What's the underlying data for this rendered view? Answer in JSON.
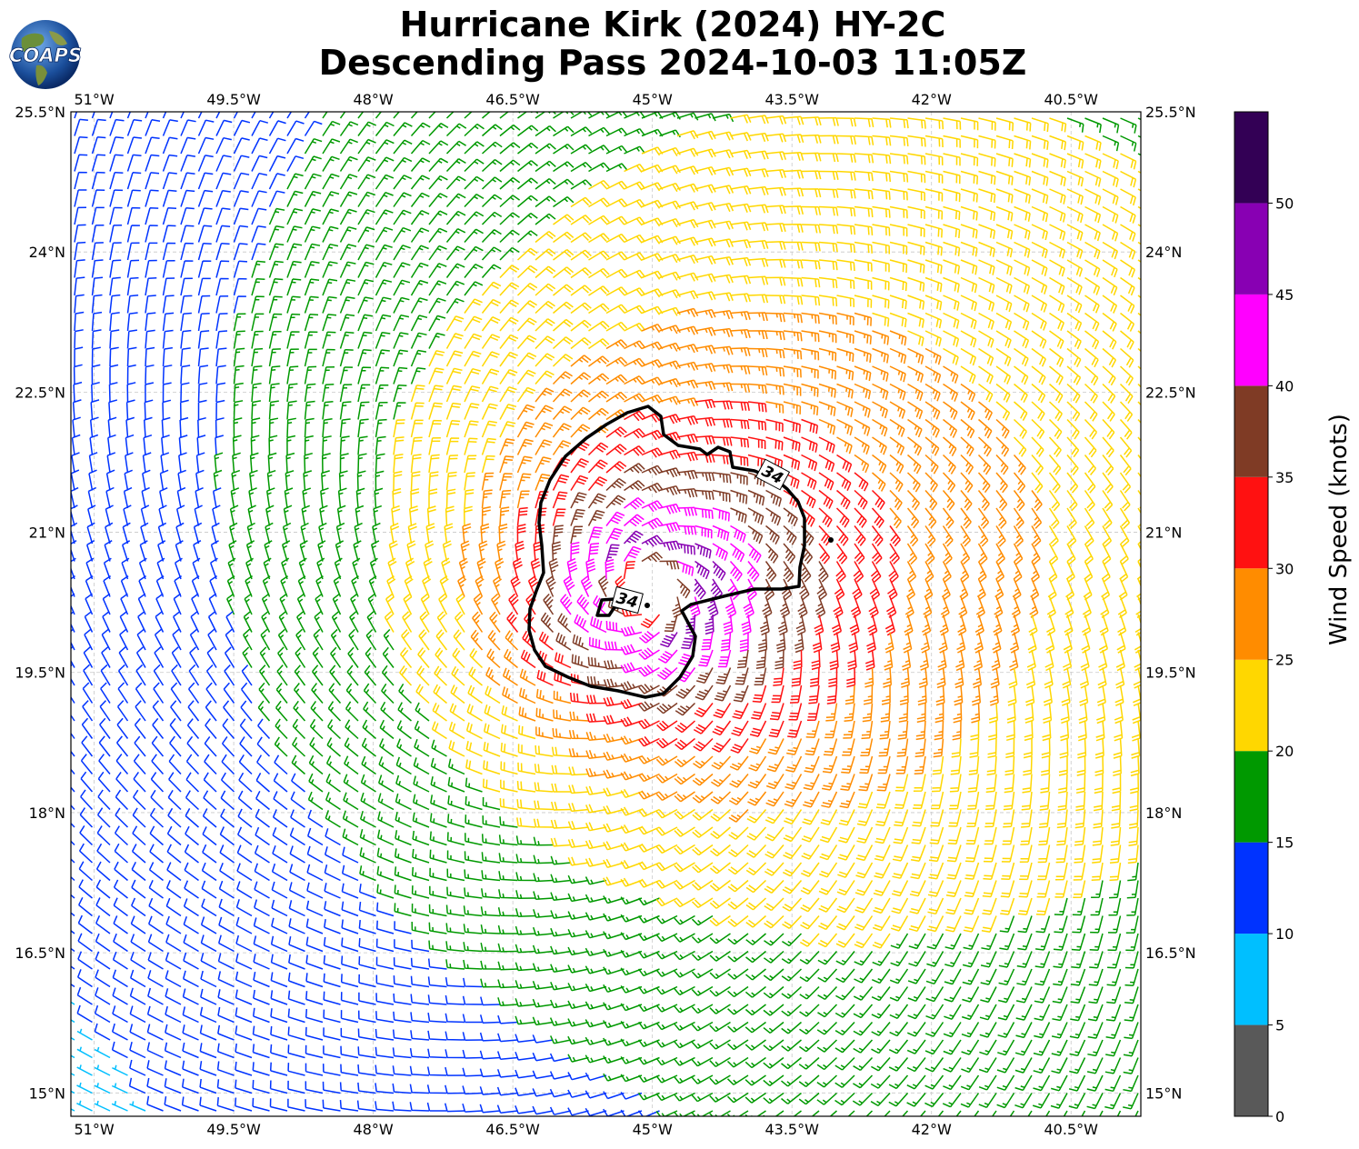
{
  "title": {
    "line1": "Hurricane Kirk (2024) HY-2C",
    "line2": "Descending Pass 2024-10-03 11:05Z"
  },
  "logo": {
    "text": "COAPS",
    "icon": "globe-icon"
  },
  "map": {
    "lon_range": [
      -51.25,
      -39.75
    ],
    "lat_range": [
      14.75,
      25.5
    ],
    "lon_ticks": [
      "51°W",
      "49.5°W",
      "48°W",
      "46.5°W",
      "45°W",
      "43.5°W",
      "42°W",
      "40.5°W"
    ],
    "lon_tick_values": [
      -51,
      -49.5,
      -48,
      -46.5,
      -45,
      -43.5,
      -42,
      -40.5
    ],
    "lat_ticks": [
      "15°N",
      "16.5°N",
      "18°N",
      "19.5°N",
      "21°N",
      "22.5°N",
      "24°N",
      "25.5°N"
    ],
    "lat_tick_values": [
      15,
      16.5,
      18,
      19.5,
      21,
      22.5,
      24,
      25.5
    ],
    "grid": true,
    "storm_center": {
      "lon": -45.05,
      "lat": 20.35
    },
    "contour": {
      "level_label": "34",
      "label_count": 2
    }
  },
  "colorbar": {
    "label": "Wind Speed (knots)",
    "bounds": [
      0,
      5,
      10,
      15,
      20,
      25,
      30,
      35,
      40,
      45,
      50,
      55
    ],
    "tick_labels": [
      "0",
      "5",
      "10",
      "15",
      "20",
      "25",
      "30",
      "35",
      "40",
      "45",
      "50"
    ],
    "colors": [
      "#595959",
      "#00bfff",
      "#0033ff",
      "#009900",
      "#ffd700",
      "#ff8c00",
      "#ff1111",
      "#7f3b25",
      "#ff00ff",
      "#8800b3",
      "#330055"
    ]
  }
}
